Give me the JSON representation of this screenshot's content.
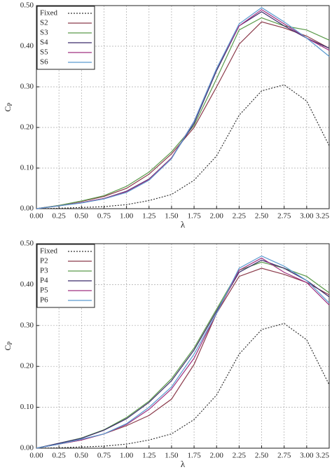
{
  "chart_data": [
    {
      "type": "line",
      "xlabel": "λ",
      "ylabel": "C",
      "ylabel_sub": "P",
      "x": [
        0,
        0.25,
        0.5,
        0.75,
        1.0,
        1.25,
        1.5,
        1.75,
        2.0,
        2.25,
        2.5,
        2.75,
        3.0,
        3.25
      ],
      "xlim": [
        0,
        3.25
      ],
      "xticks": [
        {
          "value": 0,
          "label": "0.00"
        },
        0.25,
        {
          "value": 0.5,
          "label": "0.50"
        },
        0.75,
        {
          "value": 1,
          "label": "1.00"
        },
        1.25,
        {
          "value": 1.5,
          "label": "1.50"
        },
        1.75,
        {
          "value": 2,
          "label": "2.00"
        },
        2.25,
        {
          "value": 2.5,
          "label": "2.50"
        },
        2.75,
        {
          "value": 3,
          "label": "3.00"
        },
        3.25
      ],
      "ylim": [
        0,
        0.5
      ],
      "yticks": [
        {
          "value": 0,
          "label": "0.00"
        },
        {
          "value": 0.1,
          "label": "0.10"
        },
        {
          "value": 0.2,
          "label": "0.20"
        },
        {
          "value": 0.3,
          "label": "0.30"
        },
        {
          "value": 0.4,
          "label": "0.40"
        },
        {
          "value": 0.5,
          "label": "0.50"
        }
      ],
      "grid": true,
      "legend": "upper left",
      "series": [
        {
          "name": "Fixed",
          "color": "#333333",
          "dash": "dotted",
          "values": [
            0,
            0.001,
            0.003,
            0.005,
            0.01,
            0.02,
            0.035,
            0.07,
            0.13,
            0.23,
            0.29,
            0.305,
            0.265,
            0.155
          ]
        },
        {
          "name": "S2",
          "color": "#8b3a4a",
          "values": [
            0,
            0.008,
            0.018,
            0.03,
            0.05,
            0.085,
            0.135,
            0.2,
            0.3,
            0.405,
            0.46,
            0.445,
            0.425,
            0.395
          ]
        },
        {
          "name": "S3",
          "color": "#5a9a4a",
          "values": [
            0,
            0.008,
            0.019,
            0.032,
            0.055,
            0.09,
            0.14,
            0.205,
            0.32,
            0.44,
            0.47,
            0.45,
            0.44,
            0.415
          ]
        },
        {
          "name": "S4",
          "color": "#3a2a6a",
          "values": [
            0,
            0.007,
            0.015,
            0.025,
            0.043,
            0.073,
            0.125,
            0.21,
            0.34,
            0.45,
            0.485,
            0.45,
            0.42,
            0.395
          ]
        },
        {
          "name": "S5",
          "color": "#a03080",
          "values": [
            0,
            0.007,
            0.015,
            0.025,
            0.042,
            0.072,
            0.125,
            0.215,
            0.345,
            0.45,
            0.49,
            0.455,
            0.42,
            0.39
          ]
        },
        {
          "name": "S6",
          "color": "#5a9ad0",
          "values": [
            0,
            0.007,
            0.014,
            0.024,
            0.04,
            0.07,
            0.123,
            0.215,
            0.345,
            0.455,
            0.495,
            0.46,
            0.42,
            0.375
          ]
        }
      ]
    },
    {
      "type": "line",
      "xlabel": "λ",
      "ylabel": "C",
      "ylabel_sub": "P",
      "x": [
        0,
        0.25,
        0.5,
        0.75,
        1.0,
        1.25,
        1.5,
        1.75,
        2.0,
        2.25,
        2.5,
        2.75,
        3.0,
        3.25
      ],
      "xlim": [
        0,
        3.25
      ],
      "xticks": [
        {
          "value": 0,
          "label": "0.00"
        },
        0.25,
        {
          "value": 0.5,
          "label": "0.50"
        },
        0.75,
        {
          "value": 1,
          "label": "1.00"
        },
        1.25,
        {
          "value": 1.5,
          "label": "1.50"
        },
        1.75,
        {
          "value": 2,
          "label": "2.00"
        },
        2.25,
        {
          "value": 2.5,
          "label": "2.50"
        },
        2.75,
        {
          "value": 3,
          "label": "3.00"
        },
        3.25
      ],
      "ylim": [
        0,
        0.5
      ],
      "yticks": [
        {
          "value": 0,
          "label": "0.00"
        },
        {
          "value": 0.1,
          "label": "0.10"
        },
        {
          "value": 0.2,
          "label": "0.20"
        },
        {
          "value": 0.3,
          "label": "0.30"
        },
        {
          "value": 0.4,
          "label": "0.40"
        },
        {
          "value": 0.5,
          "label": "0.50"
        }
      ],
      "grid": true,
      "legend": "upper left",
      "series": [
        {
          "name": "Fixed",
          "color": "#333333",
          "dash": "dotted",
          "values": [
            0,
            0.001,
            0.003,
            0.005,
            0.01,
            0.02,
            0.035,
            0.07,
            0.13,
            0.23,
            0.29,
            0.305,
            0.265,
            0.155
          ]
        },
        {
          "name": "P2",
          "color": "#8b3a4a",
          "values": [
            0,
            0.01,
            0.02,
            0.035,
            0.055,
            0.08,
            0.12,
            0.205,
            0.33,
            0.42,
            0.44,
            0.425,
            0.405,
            0.375
          ]
        },
        {
          "name": "P3",
          "color": "#5a9a4a",
          "values": [
            0,
            0.012,
            0.025,
            0.045,
            0.075,
            0.115,
            0.17,
            0.245,
            0.34,
            0.435,
            0.455,
            0.44,
            0.42,
            0.38
          ]
        },
        {
          "name": "P4",
          "color": "#3a2a6a",
          "values": [
            0,
            0.012,
            0.024,
            0.044,
            0.072,
            0.112,
            0.165,
            0.24,
            0.335,
            0.43,
            0.46,
            0.44,
            0.41,
            0.37
          ]
        },
        {
          "name": "P5",
          "color": "#a03080",
          "values": [
            0,
            0.01,
            0.02,
            0.035,
            0.058,
            0.095,
            0.145,
            0.22,
            0.33,
            0.435,
            0.465,
            0.43,
            0.405,
            0.35
          ]
        },
        {
          "name": "P6",
          "color": "#5a9ad0",
          "values": [
            0,
            0.01,
            0.022,
            0.035,
            0.06,
            0.1,
            0.15,
            0.23,
            0.33,
            0.44,
            0.47,
            0.445,
            0.41,
            0.355
          ]
        }
      ]
    }
  ]
}
